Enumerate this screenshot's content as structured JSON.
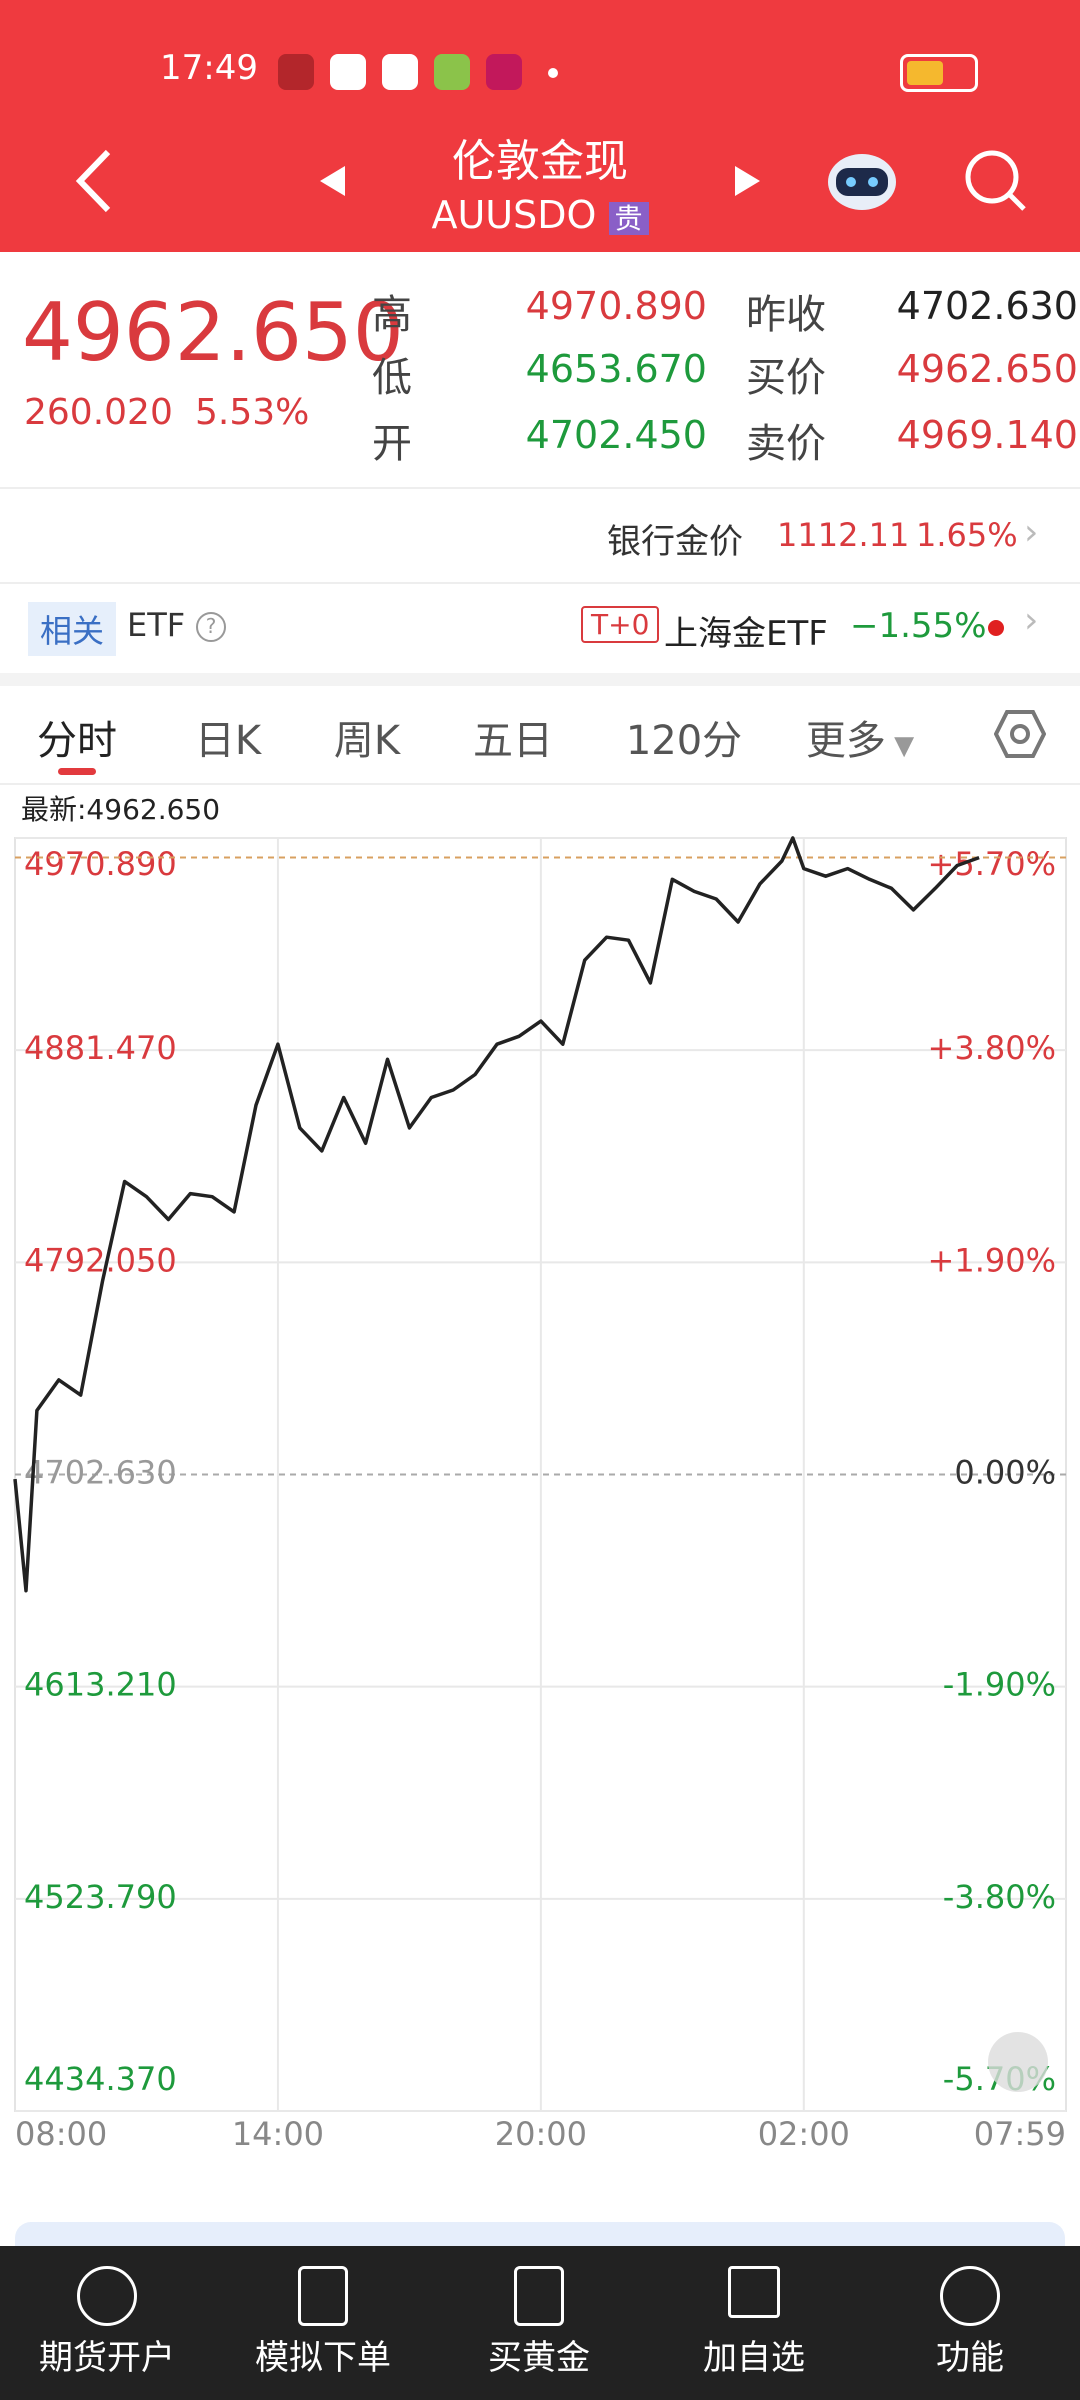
{
  "status_bar": {
    "time": "17:49"
  },
  "header": {
    "title": "伦敦金现",
    "code": "AUUSDO",
    "badge": "贵"
  },
  "quote": {
    "price": "4962.650",
    "change": "260.020",
    "change_pct": "5.53%",
    "stats": [
      {
        "label": "高",
        "value": "4970.890"
      },
      {
        "label": "昨收",
        "value": "4702.630"
      },
      {
        "label": "低",
        "value": "4653.670"
      },
      {
        "label": "买价",
        "value": "4962.650"
      },
      {
        "label": "开",
        "value": "4702.450"
      },
      {
        "label": "卖价",
        "value": "4969.140"
      }
    ]
  },
  "bank_gold": {
    "label": "银行金价",
    "price": "1112.11",
    "change_pct": "1.65%"
  },
  "etf": {
    "tag": "相关",
    "label": "ETF",
    "badge": "T+0",
    "name": "上海金ETF",
    "change_pct": "−1.55%"
  },
  "tabs": [
    "分时",
    "日K",
    "周K",
    "五日",
    "120分",
    "更多"
  ],
  "nav": [
    "期货开户",
    "模拟下单",
    "买黄金",
    "加自选",
    "功能"
  ],
  "chart_data": {
    "type": "line",
    "color": "#222222",
    "up_color": "#d93a3e",
    "down_color": "#1e9a3c",
    "latest": {
      "value": 4962.65,
      "label": "最新:4962.650"
    },
    "x": [
      0,
      15,
      30,
      60,
      90,
      120,
      150,
      180,
      210,
      240,
      270,
      300,
      330,
      360,
      390,
      420,
      450,
      480,
      510,
      540,
      570,
      600,
      630,
      660,
      690,
      720,
      750,
      780,
      810,
      840,
      870,
      900,
      930,
      960,
      990,
      1020,
      1050,
      1065,
      1080,
      1110,
      1140,
      1170,
      1200,
      1230,
      1260,
      1290,
      1320
    ],
    "values": [
      4700.7,
      4653.67,
      4729.6,
      4742.5,
      4736.1,
      4784.3,
      4826.1,
      4819.7,
      4810.1,
      4821.0,
      4819.7,
      4813.3,
      4858.3,
      4884.0,
      4848.7,
      4839.0,
      4861.5,
      4842.2,
      4877.6,
      4848.7,
      4861.5,
      4864.7,
      4871.2,
      4884.0,
      4887.3,
      4893.7,
      4884.0,
      4919.4,
      4929.1,
      4927.8,
      4909.8,
      4953.5,
      4948.4,
      4945.2,
      4935.5,
      4951.6,
      4961.2,
      4970.89,
      4958.0,
      4954.8,
      4958.0,
      4953.5,
      4949.7,
      4940.6,
      4949.7,
      4959.3,
      4962.65
    ],
    "xlim": [
      0,
      1439
    ],
    "xticks": [
      {
        "value": 0,
        "label": "08:00"
      },
      {
        "value": 360,
        "label": "14:00"
      },
      {
        "value": 720,
        "label": "20:00"
      },
      {
        "value": 1080,
        "label": "02:00"
      },
      {
        "value": 1439,
        "label": "07:59"
      }
    ],
    "ylim": [
      4434.37,
      4970.89
    ],
    "yticks": [
      {
        "value": 4970.89,
        "label": "4970.890"
      },
      {
        "value": 4881.47,
        "label": "4881.470"
      },
      {
        "value": 4792.05,
        "label": "4792.050"
      },
      {
        "value": 4702.63,
        "label": "4702.630"
      },
      {
        "value": 4613.21,
        "label": "4613.210"
      },
      {
        "value": 4523.79,
        "label": "4523.790"
      },
      {
        "value": 4434.37,
        "label": "4434.370"
      }
    ],
    "y2lim": [
      -5.7,
      5.7
    ],
    "y2ticks": [
      {
        "value": 5.7,
        "label": "+5.70%"
      },
      {
        "value": 3.8,
        "label": "+3.80%"
      },
      {
        "value": 1.9,
        "label": "+1.90%"
      },
      {
        "value": 0,
        "label": "0.00%"
      },
      {
        "value": -1.9,
        "label": "-1.90%"
      },
      {
        "value": -3.8,
        "label": "-3.80%"
      },
      {
        "value": -5.7,
        "label": "-5.70%"
      }
    ],
    "grid": true
  }
}
